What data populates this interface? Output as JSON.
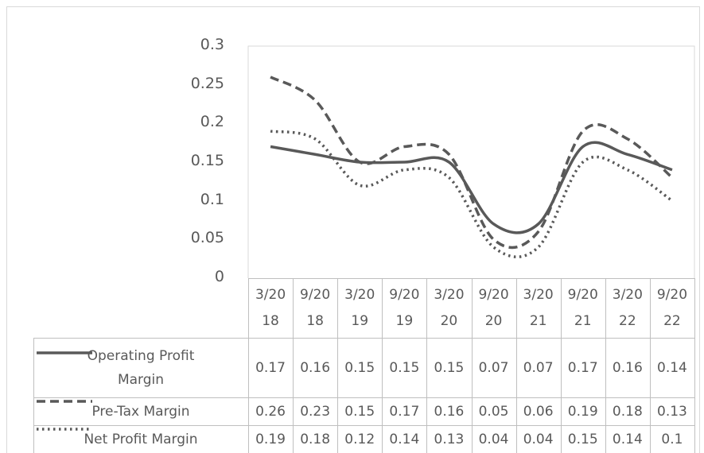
{
  "chart_data": {
    "type": "line",
    "categories": [
      "3/2018",
      "9/2018",
      "3/2019",
      "9/2019",
      "3/2020",
      "9/2020",
      "3/2021",
      "9/2021",
      "3/2022",
      "9/2022"
    ],
    "series": [
      {
        "name": "Operating Profit Margin",
        "color": "#595959",
        "dash": "solid",
        "values": [
          0.17,
          0.16,
          0.15,
          0.15,
          0.15,
          0.07,
          0.07,
          0.17,
          0.16,
          0.14
        ]
      },
      {
        "name": "Pre-Tax Margin",
        "color": "#595959",
        "dash": "dash",
        "values": [
          0.26,
          0.23,
          0.15,
          0.17,
          0.16,
          0.05,
          0.06,
          0.19,
          0.18,
          0.13
        ]
      },
      {
        "name": "Net Profit Margin",
        "color": "#595959",
        "dash": "dot",
        "values": [
          0.19,
          0.18,
          0.12,
          0.14,
          0.13,
          0.04,
          0.04,
          0.15,
          0.14,
          0.1
        ]
      }
    ],
    "ylim": [
      0,
      0.3
    ],
    "yticks": [
      0,
      0.05,
      0.1,
      0.15,
      0.2,
      0.25,
      0.3
    ],
    "smooth": true,
    "data_table": true
  }
}
